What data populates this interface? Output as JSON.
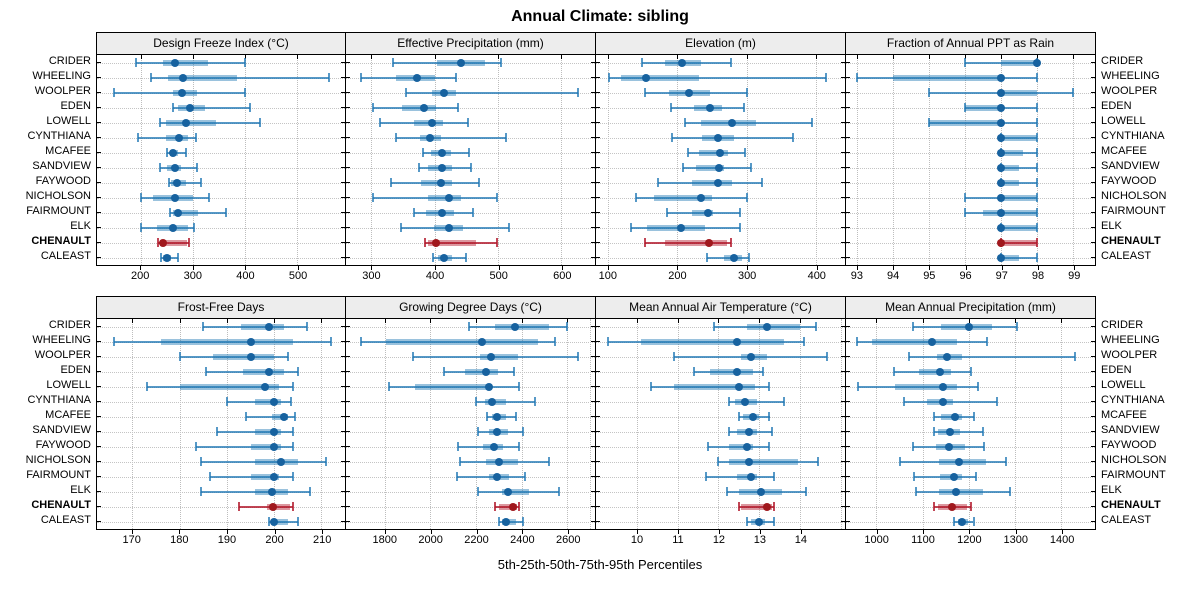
{
  "title": "Annual Climate: sibling",
  "footer": "5th-25th-50th-75th-95th Percentiles",
  "percentile_labels": [
    "5th",
    "25th",
    "50th",
    "75th",
    "95th"
  ],
  "sites": [
    "CRIDER",
    "WHEELING",
    "WOOLPER",
    "EDEN",
    "LOWELL",
    "CYNTHIANA",
    "MCAFEE",
    "SANDVIEW",
    "FAYWOOD",
    "NICHOLSON",
    "FAIRMOUNT",
    "ELK",
    "CHENAULT",
    "CALEAST"
  ],
  "highlight_site": "CHENAULT",
  "colors": {
    "series_line": "rgba(31,119,180,0.75)",
    "series_band": "rgba(31,119,180,0.45)",
    "series_dot": "#17629f",
    "highlight_line": "rgba(178,24,43,0.8)",
    "highlight_band": "rgba(178,24,43,0.45)",
    "highlight_dot": "#a0181d",
    "grid": "#bdbdbd",
    "strip_bg": "#ededed",
    "border": "#000000"
  },
  "chart_data": [
    {
      "type": "dot-whisker",
      "title": "Design Freeze Index (°C)",
      "xlim": [
        116,
        591
      ],
      "ticks": [
        200,
        300,
        400,
        500
      ],
      "values": [
        [
          190,
          242,
          265,
          328,
          400
        ],
        [
          219,
          252,
          280,
          385,
          560
        ],
        [
          148,
          262,
          278,
          308,
          399
        ],
        [
          261,
          272,
          295,
          322,
          409
        ],
        [
          236,
          249,
          287,
          344,
          429
        ],
        [
          194,
          249,
          274,
          290,
          306
        ],
        [
          251,
          255,
          262,
          271,
          286
        ],
        [
          236,
          251,
          266,
          277,
          308
        ],
        [
          253,
          258,
          270,
          287,
          315
        ],
        [
          201,
          223,
          265,
          299,
          331
        ],
        [
          255,
          261,
          272,
          309,
          363
        ],
        [
          201,
          230,
          261,
          290,
          301
        ],
        [
          233,
          237,
          243,
          288,
          293
        ],
        [
          239,
          243,
          251,
          258,
          272
        ]
      ]
    },
    {
      "type": "dot-whisker",
      "title": "Effective Precipitation (mm)",
      "xlim": [
        260,
        653
      ],
      "ticks": [
        300,
        400,
        500,
        600
      ],
      "values": [
        [
          334,
          404,
          442,
          480,
          505
        ],
        [
          284,
          339,
          372,
          400,
          433
        ],
        [
          354,
          395,
          414,
          434,
          626
        ],
        [
          302,
          348,
          383,
          402,
          437
        ],
        [
          313,
          368,
          396,
          413,
          452
        ],
        [
          339,
          376,
          393,
          410,
          512
        ],
        [
          381,
          394,
          411,
          426,
          454
        ],
        [
          375,
          389,
          411,
          428,
          457
        ],
        [
          331,
          379,
          410,
          428,
          470
        ],
        [
          302,
          389,
          422,
          441,
          499
        ],
        [
          368,
          386,
          411,
          431,
          460
        ],
        [
          347,
          399,
          423,
          444,
          517
        ],
        [
          384,
          389,
          402,
          465,
          499
        ],
        [
          397,
          405,
          415,
          428,
          449
        ]
      ]
    },
    {
      "type": "dot-whisker",
      "title": "Elevation (m)",
      "xlim": [
        83,
        442
      ],
      "ticks": [
        100,
        200,
        300,
        400
      ],
      "values": [
        [
          149,
          183,
          207,
          234,
          278
        ],
        [
          102,
          119,
          155,
          231,
          415
        ],
        [
          153,
          188,
          217,
          248,
          300
        ],
        [
          191,
          224,
          247,
          265,
          296
        ],
        [
          211,
          235,
          279,
          313,
          395
        ],
        [
          192,
          236,
          259,
          282,
          367
        ],
        [
          216,
          232,
          262,
          274,
          298
        ],
        [
          209,
          227,
          260,
          268,
          307
        ],
        [
          172,
          221,
          259,
          279,
          322
        ],
        [
          140,
          166,
          235,
          250,
          300
        ],
        [
          185,
          222,
          244,
          251,
          290
        ],
        [
          133,
          157,
          205,
          240,
          290
        ],
        [
          154,
          183,
          246,
          272,
          277
        ],
        [
          243,
          267,
          282,
          294,
          303
        ]
      ]
    },
    {
      "type": "dot-whisker",
      "title": "Fraction of Annual PPT as Rain",
      "xlim": [
        92.7,
        99.6
      ],
      "ticks": [
        93,
        94,
        95,
        96,
        97,
        98,
        99
      ],
      "values": [
        [
          96,
          97,
          98,
          98,
          98
        ],
        [
          93,
          94,
          97,
          97,
          98
        ],
        [
          95,
          97,
          97,
          98,
          99
        ],
        [
          96,
          96,
          97,
          97,
          98
        ],
        [
          95,
          95,
          97,
          97,
          98
        ],
        [
          97,
          97,
          97,
          98,
          98
        ],
        [
          97,
          97,
          97,
          97.6,
          98
        ],
        [
          97,
          97,
          97,
          97.5,
          98
        ],
        [
          97,
          97,
          97,
          97.5,
          98
        ],
        [
          96,
          97,
          97,
          98,
          98
        ],
        [
          96,
          96.5,
          97,
          98,
          98
        ],
        [
          97,
          97,
          97,
          98,
          98
        ],
        [
          97,
          97,
          97,
          98,
          98
        ],
        [
          97,
          97,
          97,
          97.5,
          98
        ]
      ]
    },
    {
      "type": "dot-whisker",
      "title": "Frost-Free Days",
      "xlim": [
        162.5,
        215
      ],
      "ticks": [
        170,
        180,
        190,
        200,
        210
      ],
      "values": [
        [
          185,
          193,
          199,
          202,
          207
        ],
        [
          166,
          176,
          195,
          204,
          212
        ],
        [
          180,
          187,
          195,
          200,
          203
        ],
        [
          185.5,
          193.5,
          199,
          202,
          205
        ],
        [
          173,
          180,
          198,
          201,
          204
        ],
        [
          190,
          196,
          200,
          201.5,
          203.5
        ],
        [
          194,
          199.5,
          202,
          203,
          204.5
        ],
        [
          188,
          196,
          200,
          201.5,
          204
        ],
        [
          183.5,
          195,
          200,
          201.5,
          204
        ],
        [
          184.5,
          196,
          201.5,
          205,
          211
        ],
        [
          186.5,
          195,
          200,
          201,
          204
        ],
        [
          184.5,
          196,
          199.5,
          203,
          207.5
        ],
        [
          192.5,
          198.5,
          199.8,
          203.4,
          203.9
        ],
        [
          199,
          199.5,
          200,
          203,
          205
        ]
      ]
    },
    {
      "type": "dot-whisker",
      "title": "Growing Degree Days (°C)",
      "xlim": [
        1631,
        2721
      ],
      "ticks": [
        1800,
        2000,
        2200,
        2400,
        2600
      ],
      "extra_gridlines": [
        2700
      ],
      "values": [
        [
          2170,
          2285,
          2372,
          2520,
          2600
        ],
        [
          1695,
          1805,
          2225,
          2470,
          2545
        ],
        [
          1925,
          2217,
          2265,
          2384,
          2645
        ],
        [
          2060,
          2150,
          2245,
          2295,
          2365
        ],
        [
          1820,
          1935,
          2255,
          2270,
          2390
        ],
        [
          2200,
          2240,
          2272,
          2333,
          2460
        ],
        [
          2250,
          2270,
          2294,
          2330,
          2375
        ],
        [
          2210,
          2258,
          2290,
          2342,
          2405
        ],
        [
          2120,
          2230,
          2280,
          2320,
          2390
        ],
        [
          2130,
          2243,
          2300,
          2385,
          2520
        ],
        [
          2115,
          2255,
          2290,
          2345,
          2415
        ],
        [
          2210,
          2313,
          2342,
          2430,
          2563
        ],
        [
          2285,
          2300,
          2360,
          2380,
          2390
        ],
        [
          2300,
          2313,
          2333,
          2374,
          2405
        ]
      ]
    },
    {
      "type": "dot-whisker",
      "title": "Mean Annual Air Temperature (°C)",
      "xlim": [
        9.0,
        15.1
      ],
      "ticks": [
        10,
        11,
        12,
        13,
        14
      ],
      "extra_gridlines": [
        15
      ],
      "values": [
        [
          11.9,
          12.7,
          13.2,
          14.0,
          14.4
        ],
        [
          9.3,
          10.1,
          12.45,
          13.6,
          14.1
        ],
        [
          10.9,
          12.55,
          12.8,
          13.2,
          14.65
        ],
        [
          11.4,
          11.8,
          12.45,
          12.85,
          13.1
        ],
        [
          10.35,
          10.9,
          12.5,
          12.9,
          13.25
        ],
        [
          12.25,
          12.4,
          12.65,
          12.95,
          13.6
        ],
        [
          12.5,
          12.6,
          12.85,
          13.0,
          13.25
        ],
        [
          12.25,
          12.45,
          12.75,
          12.95,
          13.3
        ],
        [
          11.75,
          12.25,
          12.7,
          12.85,
          13.25
        ],
        [
          12.0,
          12.25,
          12.75,
          13.95,
          14.45
        ],
        [
          11.7,
          12.45,
          12.8,
          12.95,
          13.35
        ],
        [
          12.2,
          12.5,
          13.05,
          13.55,
          14.15
        ],
        [
          12.5,
          12.55,
          13.2,
          13.3,
          13.35
        ],
        [
          12.7,
          12.8,
          13.0,
          13.15,
          13.35
        ]
      ]
    },
    {
      "type": "dot-whisker",
      "title": "Mean Annual Precipitation (mm)",
      "xlim": [
        934,
        1473
      ],
      "ticks": [
        1000,
        1100,
        1200,
        1300,
        1400
      ],
      "values": [
        [
          1080,
          1140,
          1200,
          1250,
          1305
        ],
        [
          958,
          990,
          1120,
          1175,
          1240
        ],
        [
          1070,
          1130,
          1152,
          1185,
          1430
        ],
        [
          1037,
          1093,
          1138,
          1162,
          1205
        ],
        [
          960,
          1040,
          1145,
          1175,
          1220
        ],
        [
          1060,
          1110,
          1143,
          1165,
          1260
        ],
        [
          1125,
          1140,
          1170,
          1185,
          1212
        ],
        [
          1125,
          1134,
          1160,
          1180,
          1230
        ],
        [
          1078,
          1128,
          1156,
          1192,
          1233
        ],
        [
          1050,
          1135,
          1178,
          1236,
          1280
        ],
        [
          1082,
          1138,
          1168,
          1185,
          1215
        ],
        [
          1085,
          1135,
          1173,
          1230,
          1290
        ],
        [
          1125,
          1133,
          1164,
          1197,
          1205
        ],
        [
          1168,
          1176,
          1186,
          1199,
          1210
        ]
      ]
    }
  ]
}
